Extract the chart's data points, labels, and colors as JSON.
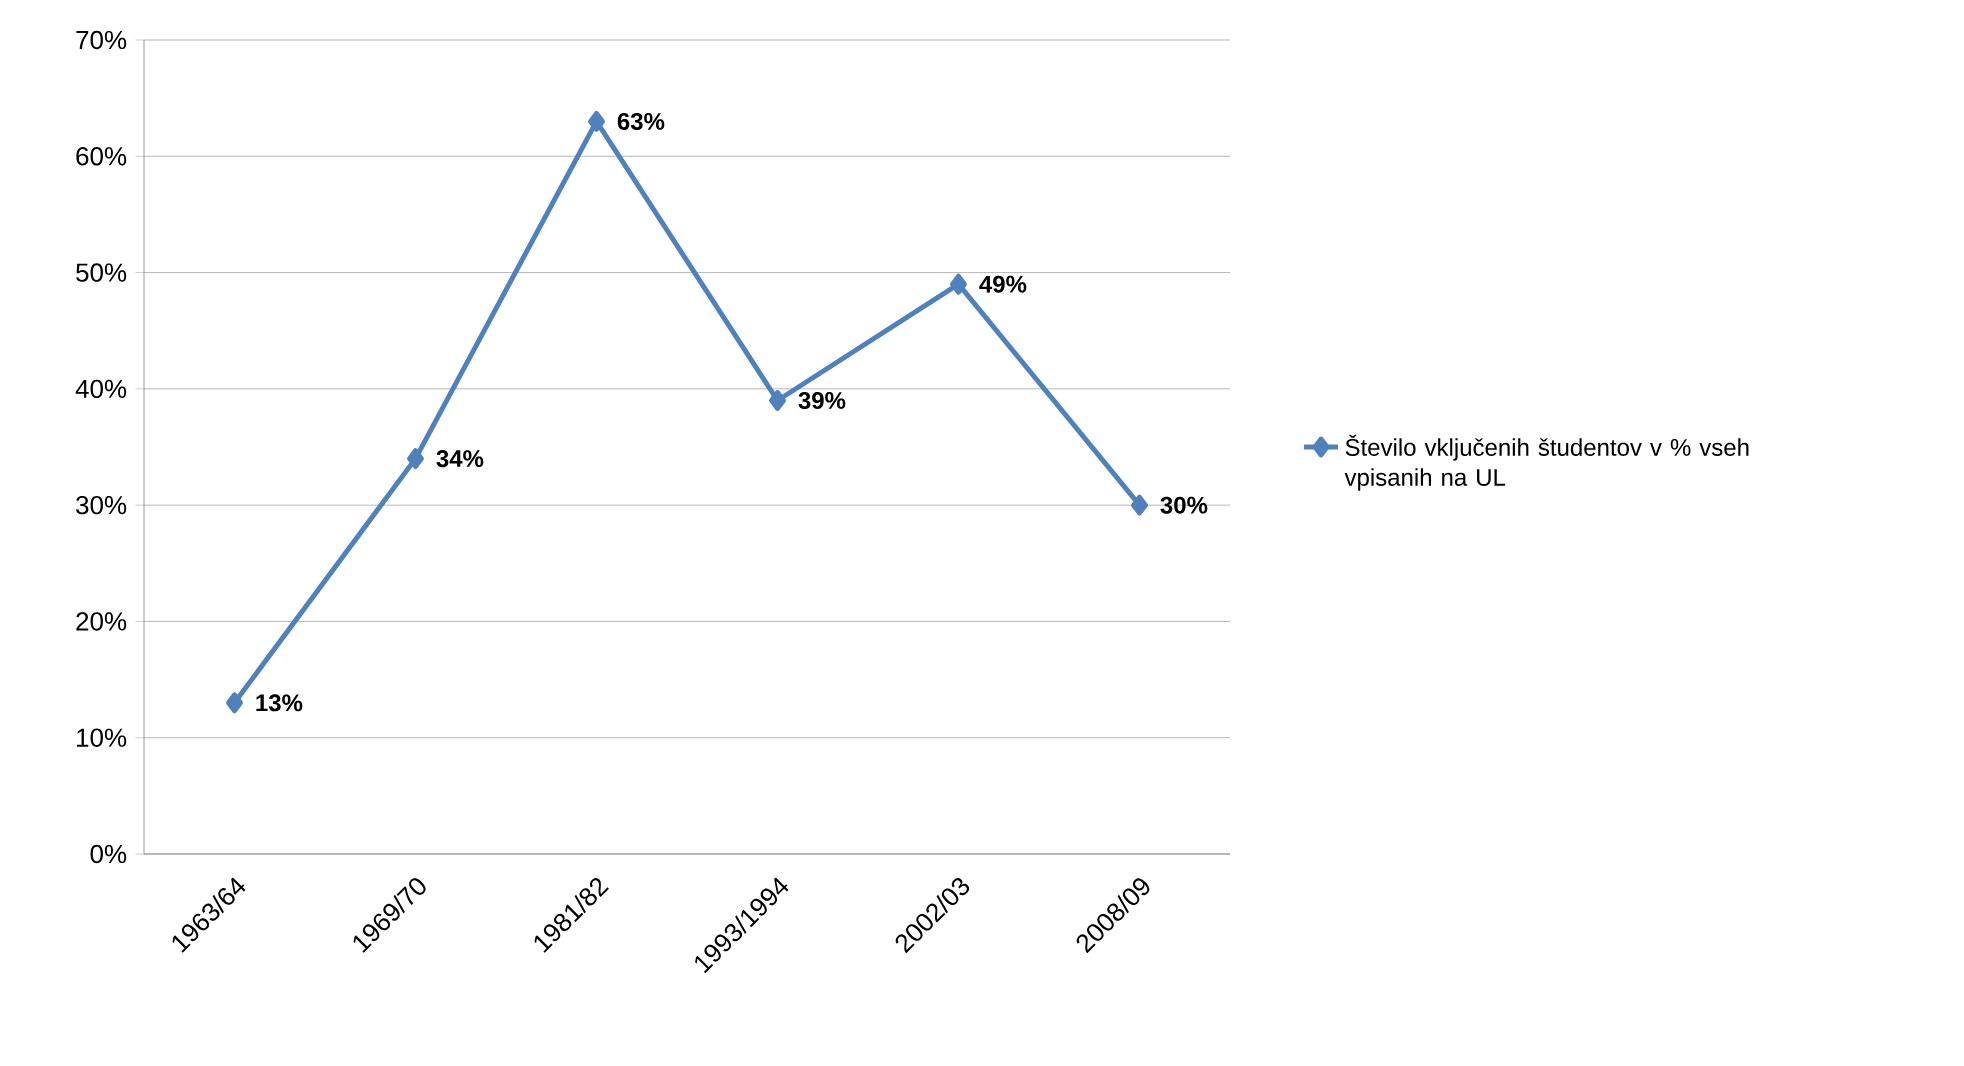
{
  "chart_data": {
    "type": "line",
    "categories": [
      "1963/64",
      "1969/70",
      "1981/82",
      "1993/1994",
      "2002/03",
      "2008/09"
    ],
    "series": [
      {
        "name": "Število vključenih študentov v % vseh vpisanih na UL",
        "color": "#4f81bd",
        "values": [
          13,
          34,
          63,
          39,
          49,
          30
        ],
        "value_labels": [
          "13%",
          "34%",
          "63%",
          "39%",
          "49%",
          "30%"
        ]
      }
    ],
    "ylim": [
      0,
      70
    ],
    "yticks": [
      {
        "value": 0,
        "label": "0%"
      },
      {
        "value": 10,
        "label": "10%"
      },
      {
        "value": 20,
        "label": "20%"
      },
      {
        "value": 30,
        "label": "30%"
      },
      {
        "value": 40,
        "label": "40%"
      },
      {
        "value": 50,
        "label": "50%"
      },
      {
        "value": 60,
        "label": "60%"
      },
      {
        "value": 70,
        "label": "70%"
      }
    ],
    "grid": "y",
    "legend": "right",
    "marker": "diamond",
    "line_style": "solid"
  }
}
